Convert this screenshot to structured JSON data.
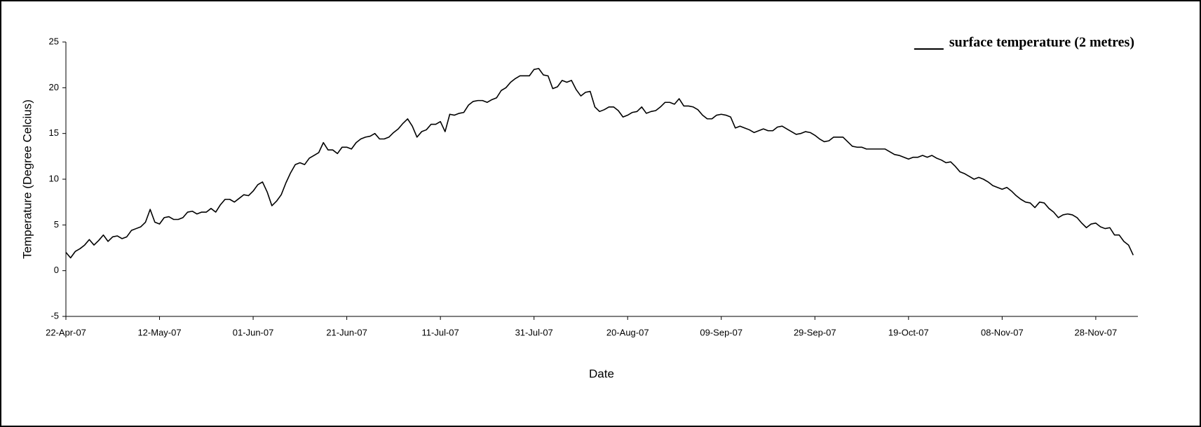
{
  "chart_data": {
    "type": "line",
    "x_label": "Date",
    "y_label": "Temperature (Degree Celcius)",
    "x": [
      "2007-04-22",
      "2007-04-23",
      "2007-04-24",
      "2007-04-25",
      "2007-04-26",
      "2007-04-27",
      "2007-04-28",
      "2007-04-29",
      "2007-04-30",
      "2007-05-01",
      "2007-05-02",
      "2007-05-03",
      "2007-05-04",
      "2007-05-05",
      "2007-05-06",
      "2007-05-07",
      "2007-05-08",
      "2007-05-09",
      "2007-05-10",
      "2007-05-11",
      "2007-05-12",
      "2007-05-13",
      "2007-05-14",
      "2007-05-15",
      "2007-05-16",
      "2007-05-17",
      "2007-05-18",
      "2007-05-19",
      "2007-05-20",
      "2007-05-21",
      "2007-05-22",
      "2007-05-23",
      "2007-05-24",
      "2007-05-25",
      "2007-05-26",
      "2007-05-27",
      "2007-05-28",
      "2007-05-29",
      "2007-05-30",
      "2007-05-31",
      "2007-06-01",
      "2007-06-02",
      "2007-06-03",
      "2007-06-04",
      "2007-06-05",
      "2007-06-06",
      "2007-06-07",
      "2007-06-08",
      "2007-06-09",
      "2007-06-10",
      "2007-06-11",
      "2007-06-12",
      "2007-06-13",
      "2007-06-14",
      "2007-06-15",
      "2007-06-16",
      "2007-06-17",
      "2007-06-18",
      "2007-06-19",
      "2007-06-20",
      "2007-06-21",
      "2007-06-22",
      "2007-06-23",
      "2007-06-24",
      "2007-06-25",
      "2007-06-26",
      "2007-06-27",
      "2007-06-28",
      "2007-06-29",
      "2007-06-30",
      "2007-07-01",
      "2007-07-02",
      "2007-07-03",
      "2007-07-04",
      "2007-07-05",
      "2007-07-06",
      "2007-07-07",
      "2007-07-08",
      "2007-07-09",
      "2007-07-10",
      "2007-07-11",
      "2007-07-12",
      "2007-07-13",
      "2007-07-14",
      "2007-07-15",
      "2007-07-16",
      "2007-07-17",
      "2007-07-18",
      "2007-07-19",
      "2007-07-20",
      "2007-07-21",
      "2007-07-22",
      "2007-07-23",
      "2007-07-24",
      "2007-07-25",
      "2007-07-26",
      "2007-07-27",
      "2007-07-28",
      "2007-07-29",
      "2007-07-30",
      "2007-07-31",
      "2007-08-01",
      "2007-08-02",
      "2007-08-03",
      "2007-08-04",
      "2007-08-05",
      "2007-08-06",
      "2007-08-07",
      "2007-08-08",
      "2007-08-09",
      "2007-08-10",
      "2007-08-11",
      "2007-08-12",
      "2007-08-13",
      "2007-08-14",
      "2007-08-15",
      "2007-08-16",
      "2007-08-17",
      "2007-08-18",
      "2007-08-19",
      "2007-08-20",
      "2007-08-21",
      "2007-08-22",
      "2007-08-23",
      "2007-08-24",
      "2007-08-25",
      "2007-08-26",
      "2007-08-27",
      "2007-08-28",
      "2007-08-29",
      "2007-08-30",
      "2007-08-31",
      "2007-09-01",
      "2007-09-02",
      "2007-09-03",
      "2007-09-04",
      "2007-09-05",
      "2007-09-06",
      "2007-09-07",
      "2007-09-08",
      "2007-09-09",
      "2007-09-10",
      "2007-09-11",
      "2007-09-12",
      "2007-09-13",
      "2007-09-14",
      "2007-09-15",
      "2007-09-16",
      "2007-09-17",
      "2007-09-18",
      "2007-09-19",
      "2007-09-20",
      "2007-09-21",
      "2007-09-22",
      "2007-09-23",
      "2007-09-24",
      "2007-09-25",
      "2007-09-26",
      "2007-09-27",
      "2007-09-28",
      "2007-09-29",
      "2007-09-30",
      "2007-10-01",
      "2007-10-02",
      "2007-10-03",
      "2007-10-04",
      "2007-10-05",
      "2007-10-06",
      "2007-10-07",
      "2007-10-08",
      "2007-10-09",
      "2007-10-10",
      "2007-10-11",
      "2007-10-12",
      "2007-10-13",
      "2007-10-14",
      "2007-10-15",
      "2007-10-16",
      "2007-10-17",
      "2007-10-18",
      "2007-10-19",
      "2007-10-20",
      "2007-10-21",
      "2007-10-22",
      "2007-10-23",
      "2007-10-24",
      "2007-10-25",
      "2007-10-26",
      "2007-10-27",
      "2007-10-28",
      "2007-10-29",
      "2007-10-30",
      "2007-10-31",
      "2007-11-01",
      "2007-11-02",
      "2007-11-03",
      "2007-11-04",
      "2007-11-05",
      "2007-11-06",
      "2007-11-07",
      "2007-11-08",
      "2007-11-09",
      "2007-11-10",
      "2007-11-11",
      "2007-11-12",
      "2007-11-13",
      "2007-11-14",
      "2007-11-15",
      "2007-11-16",
      "2007-11-17",
      "2007-11-18",
      "2007-11-19",
      "2007-11-20",
      "2007-11-21",
      "2007-11-22",
      "2007-11-23",
      "2007-11-24",
      "2007-11-25",
      "2007-11-26",
      "2007-11-27",
      "2007-11-28",
      "2007-11-29",
      "2007-11-30",
      "2007-12-01",
      "2007-12-02",
      "2007-12-03",
      "2007-12-04",
      "2007-12-05",
      "2007-12-06"
    ],
    "series": [
      {
        "name": "surface temperature (2 metres)",
        "color": "#000000",
        "values": [
          2.0,
          1.4,
          2.1,
          2.4,
          2.8,
          3.4,
          2.8,
          3.3,
          3.9,
          3.2,
          3.7,
          3.8,
          3.5,
          3.7,
          4.4,
          4.6,
          4.8,
          5.3,
          6.7,
          5.3,
          5.1,
          5.8,
          5.9,
          5.6,
          5.6,
          5.8,
          6.4,
          6.5,
          6.2,
          6.4,
          6.4,
          6.8,
          6.4,
          7.2,
          7.8,
          7.8,
          7.5,
          7.9,
          8.3,
          8.2,
          8.7,
          9.4,
          9.7,
          8.6,
          7.1,
          7.6,
          8.3,
          9.6,
          10.7,
          11.6,
          11.8,
          11.6,
          12.3,
          12.6,
          12.9,
          14.0,
          13.2,
          13.2,
          12.8,
          13.5,
          13.5,
          13.3,
          14.0,
          14.4,
          14.6,
          14.7,
          15.0,
          14.4,
          14.4,
          14.6,
          15.1,
          15.5,
          16.1,
          16.6,
          15.8,
          14.6,
          15.2,
          15.4,
          16.0,
          16.0,
          16.3,
          15.2,
          17.1,
          17.0,
          17.2,
          17.3,
          18.1,
          18.5,
          18.6,
          18.6,
          18.4,
          18.7,
          18.9,
          19.7,
          20.0,
          20.6,
          21.0,
          21.3,
          21.3,
          21.3,
          22.0,
          22.1,
          21.4,
          21.3,
          19.9,
          20.1,
          20.8,
          20.6,
          20.8,
          19.8,
          19.1,
          19.5,
          19.6,
          17.9,
          17.4,
          17.6,
          17.9,
          17.9,
          17.5,
          16.8,
          17.0,
          17.3,
          17.4,
          17.9,
          17.2,
          17.4,
          17.5,
          17.9,
          18.4,
          18.4,
          18.2,
          18.8,
          18.0,
          18.0,
          17.9,
          17.6,
          17.0,
          16.6,
          16.6,
          17.0,
          17.1,
          17.0,
          16.8,
          15.6,
          15.8,
          15.6,
          15.4,
          15.1,
          15.3,
          15.5,
          15.3,
          15.3,
          15.7,
          15.8,
          15.5,
          15.2,
          14.9,
          15.0,
          15.2,
          15.1,
          14.8,
          14.4,
          14.1,
          14.2,
          14.6,
          14.6,
          14.6,
          14.1,
          13.6,
          13.5,
          13.5,
          13.3,
          13.3,
          13.3,
          13.3,
          13.3,
          13.0,
          12.7,
          12.6,
          12.4,
          12.2,
          12.4,
          12.4,
          12.6,
          12.4,
          12.6,
          12.3,
          12.1,
          11.8,
          11.9,
          11.4,
          10.8,
          10.6,
          10.3,
          10.0,
          10.2,
          10.0,
          9.7,
          9.3,
          9.1,
          8.9,
          9.1,
          8.7,
          8.2,
          7.8,
          7.5,
          7.4,
          6.9,
          7.5,
          7.4,
          6.8,
          6.4,
          5.8,
          6.1,
          6.2,
          6.1,
          5.8,
          5.2,
          4.7,
          5.1,
          5.2,
          4.8,
          4.6,
          4.7,
          3.9,
          3.9,
          3.2,
          2.8,
          1.7
        ]
      }
    ],
    "xlim": [
      "2007-04-22",
      "2007-12-07"
    ],
    "xticks": [
      {
        "value": "2007-04-22",
        "label": "22-Apr-07"
      },
      {
        "value": "2007-05-12",
        "label": "12-May-07"
      },
      {
        "value": "2007-06-01",
        "label": "01-Jun-07"
      },
      {
        "value": "2007-06-21",
        "label": "21-Jun-07"
      },
      {
        "value": "2007-07-11",
        "label": "11-Jul-07"
      },
      {
        "value": "2007-07-31",
        "label": "31-Jul-07"
      },
      {
        "value": "2007-08-20",
        "label": "20-Aug-07"
      },
      {
        "value": "2007-09-09",
        "label": "09-Sep-07"
      },
      {
        "value": "2007-09-29",
        "label": "29-Sep-07"
      },
      {
        "value": "2007-10-19",
        "label": "19-Oct-07"
      },
      {
        "value": "2007-11-08",
        "label": "08-Nov-07"
      },
      {
        "value": "2007-11-28",
        "label": "28-Nov-07"
      }
    ],
    "ylim": [
      -5,
      25
    ],
    "yticks": [
      -5,
      0,
      5,
      10,
      15,
      20,
      25
    ],
    "legend": "top-right",
    "grid": false
  }
}
